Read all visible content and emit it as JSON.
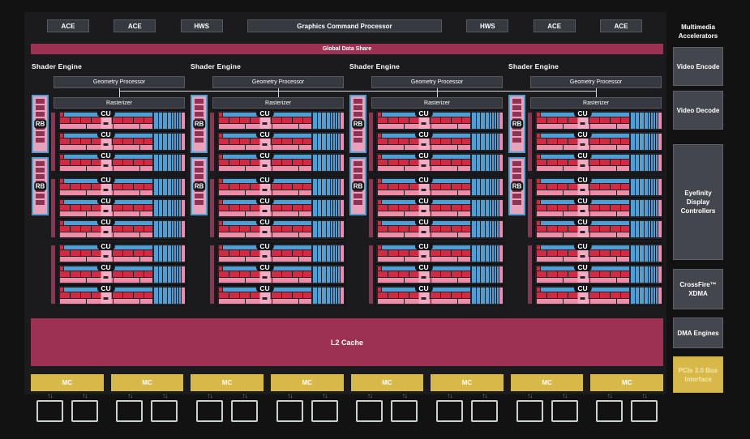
{
  "colors": {
    "maroon": "#9d3154",
    "blue": "#4f9fd7",
    "red": "#d22a42",
    "pink": "#f28ba8",
    "pink_light": "#f7abc3",
    "gold": "#d9b84a",
    "rb_square": "#8e3352",
    "box_gray": "#36393f",
    "sidebar_gray": "#43464c"
  },
  "top_row": {
    "items": [
      "ACE",
      "ACE",
      "HWS",
      "Graphics Command Processor",
      "HWS",
      "ACE",
      "ACE"
    ]
  },
  "global_data_share": {
    "label": "Global Data Share"
  },
  "shader_engine": {
    "count": 4,
    "label": "Shader Engine",
    "geometry_processor": "Geometry Processor",
    "rasterizer": "Rasterizer",
    "rb": {
      "count": 2,
      "label": "RB",
      "slots": 7
    },
    "cu": {
      "groups": 3,
      "per_group": 3,
      "label": "CU"
    }
  },
  "l2_cache": {
    "label": "L2 Cache"
  },
  "memory": {
    "mc_count": 8,
    "mc_label": "MC",
    "chips_per_mc": 2
  },
  "icons": {
    "mem-transfer-arrows": "↑↓"
  },
  "sidebar": {
    "header": "Multimedia Accelerators",
    "video_encode": "Video Encode",
    "video_decode": "Video Decode",
    "eyefinity": "Eyefinity Display Controllers",
    "crossfire": "CrossFire™ XDMA",
    "dma": "DMA Engines",
    "pcie": "PCIe 3.0 Bus Interface"
  }
}
